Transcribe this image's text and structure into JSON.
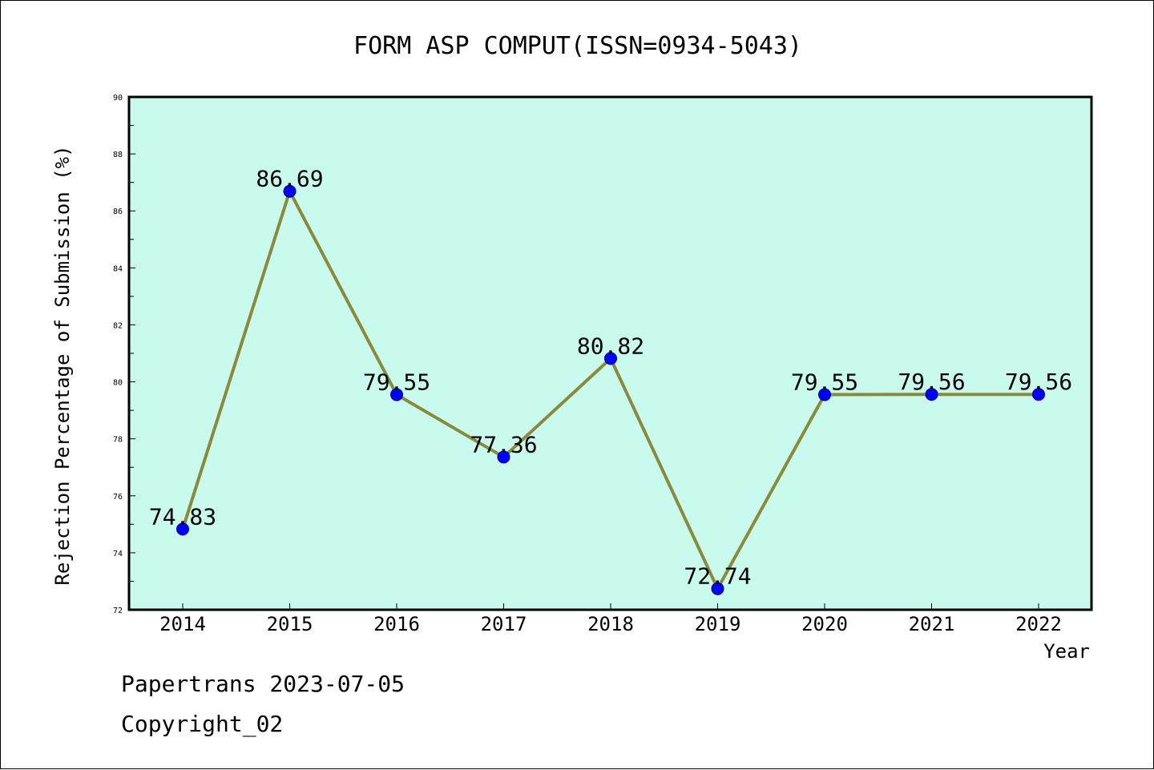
{
  "chart_data": {
    "type": "line",
    "title": "FORM ASP COMPUT(ISSN=0934-5043)",
    "xlabel": "Year",
    "ylabel": "Rejection Percentage of Submission (%)",
    "categories": [
      "2014",
      "2015",
      "2016",
      "2017",
      "2018",
      "2019",
      "2020",
      "2021",
      "2022"
    ],
    "values": [
      74.83,
      86.69,
      79.55,
      77.36,
      80.82,
      72.74,
      79.55,
      79.56,
      79.56
    ],
    "data_labels": [
      "74.83",
      "86.69",
      "79.55",
      "77.36",
      "80.82",
      "72.74",
      "79.55",
      "79.56",
      "79.56"
    ],
    "ylim": [
      72,
      90
    ],
    "yticks": [
      "72",
      "74",
      "76",
      "78",
      "80",
      "82",
      "84",
      "86",
      "88",
      "90"
    ],
    "grid": false,
    "legend": "none",
    "colors": {
      "plot_background": "#c8fbee",
      "line": "#8b8a3a",
      "marker": "#0000ff",
      "text": "#000000"
    }
  },
  "footer": {
    "line1": "Papertrans 2023-07-05",
    "line2": "Copyright_02"
  }
}
